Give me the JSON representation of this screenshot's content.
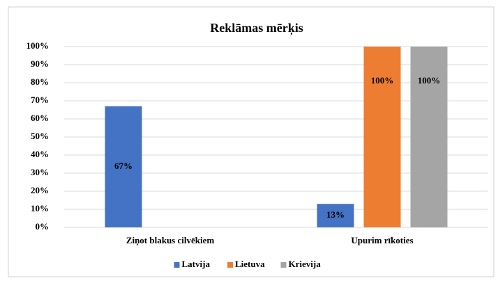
{
  "chart_data": {
    "type": "bar",
    "title": "Reklāmas mērķis",
    "categories": [
      "Ziņot blakus cilvēkiem",
      "Upurim rīkoties"
    ],
    "series": [
      {
        "name": "Latvija",
        "color": "#4472c4",
        "values": [
          67,
          13
        ],
        "value_labels": [
          "67%",
          "13%"
        ]
      },
      {
        "name": "Lietuva",
        "color": "#ed7d31",
        "values": [
          null,
          100
        ],
        "value_labels": [
          null,
          "100%"
        ]
      },
      {
        "name": "Krievija",
        "color": "#a5a5a5",
        "values": [
          null,
          100
        ],
        "value_labels": [
          null,
          "100%"
        ]
      }
    ],
    "ylim": [
      0,
      100
    ],
    "yticks": [
      {
        "value": 0,
        "label": "0%"
      },
      {
        "value": 10,
        "label": "10%"
      },
      {
        "value": 20,
        "label": "20%"
      },
      {
        "value": 30,
        "label": "30%"
      },
      {
        "value": 40,
        "label": "40%"
      },
      {
        "value": 50,
        "label": "50%"
      },
      {
        "value": 60,
        "label": "60%"
      },
      {
        "value": 70,
        "label": "70%"
      },
      {
        "value": 80,
        "label": "80%"
      },
      {
        "value": 90,
        "label": "90%"
      },
      {
        "value": 100,
        "label": "100%"
      }
    ],
    "grid": true,
    "legend": "bottom"
  }
}
